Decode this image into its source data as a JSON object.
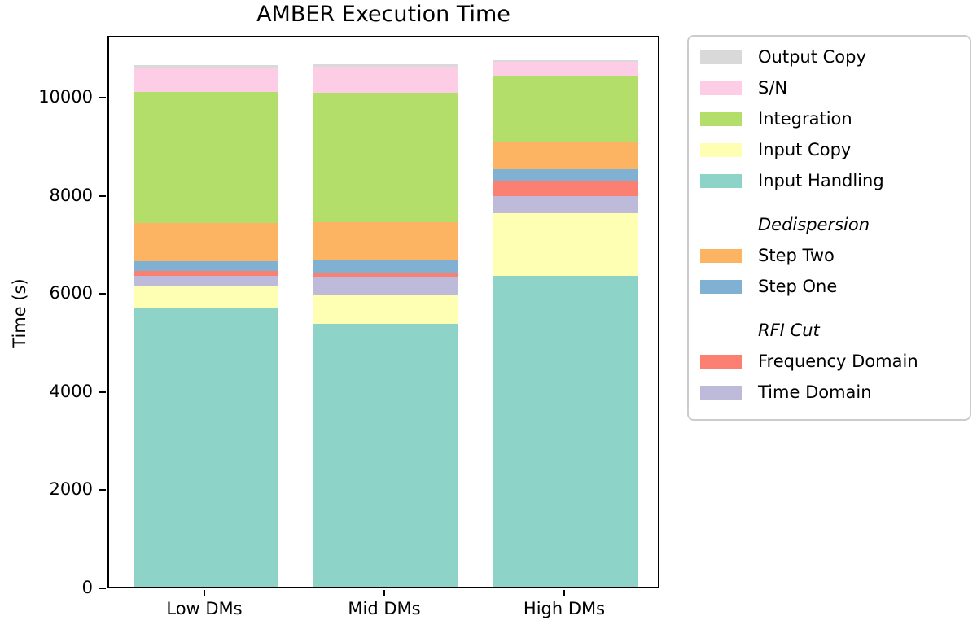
{
  "title": "AMBER Execution Time",
  "chart_data": {
    "type": "bar",
    "stacked": true,
    "title": "AMBER Execution Time",
    "xlabel": "",
    "ylabel": "Time (s)",
    "categories": [
      "Low DMs",
      "Mid DMs",
      "High DMs"
    ],
    "series": [
      {
        "name": "Input Handling",
        "color": "#8dd3c7",
        "values": [
          5670,
          5350,
          6340
        ]
      },
      {
        "name": "Input Copy",
        "color": "#ffffb3",
        "values": [
          460,
          590,
          1280
        ]
      },
      {
        "name": "Time Domain",
        "color": "#bebada",
        "values": [
          210,
          355,
          340
        ]
      },
      {
        "name": "Frequency Domain",
        "color": "#fb8072",
        "values": [
          100,
          90,
          295
        ]
      },
      {
        "name": "Step One",
        "color": "#80b1d3",
        "values": [
          200,
          265,
          245
        ]
      },
      {
        "name": "Step Two",
        "color": "#fdb462",
        "values": [
          780,
          775,
          555
        ]
      },
      {
        "name": "Integration",
        "color": "#b3de69",
        "values": [
          2660,
          2640,
          1355
        ]
      },
      {
        "name": "S/N",
        "color": "#fccde5",
        "values": [
          485,
          525,
          285
        ]
      },
      {
        "name": "Output Copy",
        "color": "#d9d9d9",
        "values": [
          65,
          55,
          35
        ]
      }
    ],
    "totals": [
      10630,
      10645,
      10730
    ],
    "ylim": [
      0,
      11260
    ],
    "yticks": [
      0,
      2000,
      4000,
      6000,
      8000,
      10000
    ],
    "grid": false,
    "legend": {
      "position": "outside-right",
      "items": [
        {
          "type": "entry",
          "label": "Output Copy",
          "color": "#d9d9d9"
        },
        {
          "type": "entry",
          "label": "S/N",
          "color": "#fccde5"
        },
        {
          "type": "entry",
          "label": "Integration",
          "color": "#b3de69"
        },
        {
          "type": "entry",
          "label": "Input Copy",
          "color": "#ffffb3"
        },
        {
          "type": "entry",
          "label": "Input Handling",
          "color": "#8dd3c7"
        },
        {
          "type": "gap"
        },
        {
          "type": "header",
          "label": "Dedispersion"
        },
        {
          "type": "entry",
          "label": "Step Two",
          "color": "#fdb462"
        },
        {
          "type": "entry",
          "label": "Step One",
          "color": "#80b1d3"
        },
        {
          "type": "gap"
        },
        {
          "type": "header",
          "label": "RFI Cut"
        },
        {
          "type": "entry",
          "label": "Frequency Domain",
          "color": "#fb8072"
        },
        {
          "type": "entry",
          "label": "Time Domain",
          "color": "#bebada"
        }
      ]
    }
  }
}
